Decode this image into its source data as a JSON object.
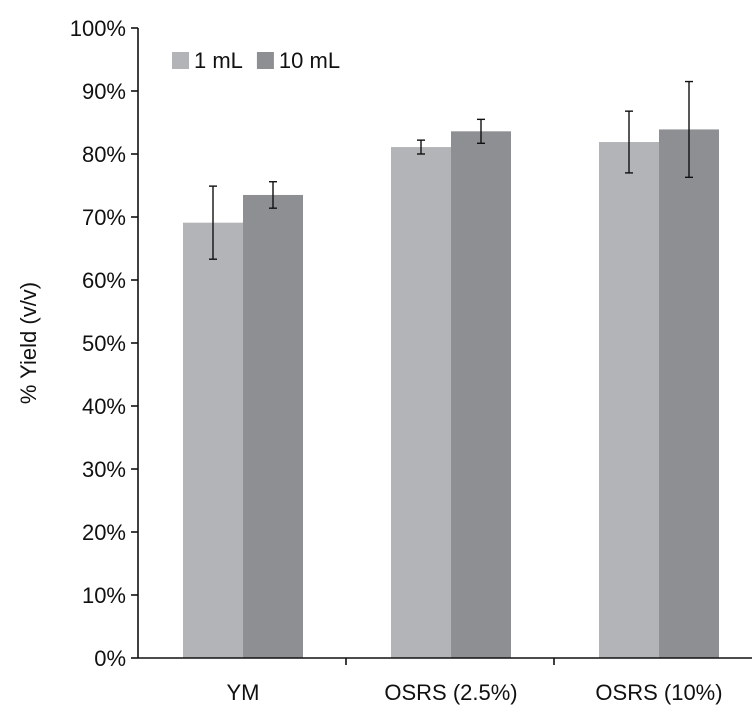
{
  "chart_data": {
    "type": "bar",
    "title": "",
    "ylabel": "% Yield (v/v)",
    "xlabel": "",
    "ylim": [
      0,
      100
    ],
    "y_ticks": [
      0,
      10,
      20,
      30,
      40,
      50,
      60,
      70,
      80,
      90,
      100
    ],
    "y_tick_format": "percent",
    "categories": [
      "YM",
      "OSRS (2.5%)",
      "OSRS (10%)"
    ],
    "series": [
      {
        "name": "1 mL",
        "color": "#b3b4b7",
        "values": [
          69.1,
          81.1,
          81.9
        ],
        "errors": [
          5.8,
          1.1,
          4.9
        ]
      },
      {
        "name": "10 mL",
        "color": "#8e8f93",
        "values": [
          73.5,
          83.6,
          83.9
        ],
        "errors": [
          2.1,
          1.9,
          7.6
        ]
      }
    ],
    "legend": {
      "position": "top-left"
    },
    "error_bars": true,
    "grid": false
  }
}
